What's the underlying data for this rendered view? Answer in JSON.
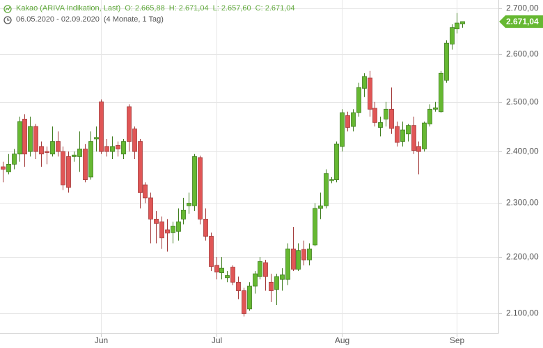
{
  "chart_data": {
    "type": "candlestick",
    "title": "Kakao (ARIVA Indikation, Last)",
    "ohlc_labels": [
      "O: 2.665,88",
      "H: 2.671,04",
      "L: 2.657,60",
      "C: 2.671,04"
    ],
    "period": "06.05.2020 - 02.09.2020",
    "period_note": "(4 Monate, 1 Tag)",
    "log_scale": true,
    "grid": true,
    "up_color": "#66b832",
    "down_color": "#e05656",
    "categories": [
      null,
      null,
      null,
      null,
      null,
      null,
      null,
      null,
      null,
      null,
      null,
      null,
      null,
      null,
      null,
      null,
      null,
      null,
      "Jun",
      null,
      null,
      null,
      null,
      null,
      null,
      null,
      null,
      null,
      null,
      null,
      null,
      null,
      null,
      null,
      null,
      null,
      null,
      null,
      null,
      "Jul",
      null,
      null,
      null,
      null,
      null,
      null,
      null,
      null,
      null,
      null,
      null,
      null,
      null,
      null,
      null,
      null,
      null,
      null,
      null,
      null,
      null,
      null,
      "Aug",
      null,
      null,
      null,
      null,
      null,
      null,
      null,
      null,
      null,
      null,
      null,
      null,
      null,
      null,
      null,
      null,
      null,
      null,
      null,
      null,
      "Sep",
      null
    ],
    "open": [
      2370,
      2360,
      2375,
      2395,
      2465,
      2400,
      2450,
      2410,
      2400,
      2395,
      2420,
      2400,
      2390,
      2390,
      2390,
      2405,
      2350,
      2425,
      2500,
      2410,
      2400,
      2412,
      2395,
      2490,
      2445,
      2420,
      2335,
      2310,
      2270,
      2265,
      2250,
      2245,
      2247,
      2270,
      2295,
      2295,
      2388,
      2270,
      2238,
      2185,
      2172,
      2163,
      2182,
      2155,
      2140,
      2108,
      2148,
      2165,
      2190,
      2155,
      2142,
      2160,
      2160,
      2215,
      2178,
      2214,
      2195,
      2222,
      2290,
      2295,
      2343,
      2345,
      2410,
      2472,
      2450,
      2478,
      2528,
      2550,
      2487,
      2448,
      2465,
      2485,
      2450,
      2420,
      2435,
      2452,
      2410,
      2405,
      2455,
      2485,
      2480,
      2545,
      2622,
      2655,
      2665.88
    ],
    "high": [
      2380,
      2395,
      2405,
      2470,
      2475,
      2470,
      2455,
      2420,
      2410,
      2450,
      2440,
      2410,
      2400,
      2400,
      2440,
      2415,
      2440,
      2450,
      2505,
      2425,
      2430,
      2420,
      2425,
      2495,
      2450,
      2425,
      2340,
      2320,
      2285,
      2275,
      2270,
      2265,
      2290,
      2310,
      2320,
      2395,
      2392,
      2290,
      2245,
      2200,
      2200,
      2175,
      2185,
      2165,
      2145,
      2155,
      2175,
      2200,
      2195,
      2170,
      2170,
      2180,
      2225,
      2255,
      2225,
      2230,
      2225,
      2300,
      2320,
      2365,
      2350,
      2420,
      2485,
      2480,
      2485,
      2540,
      2560,
      2565,
      2500,
      2470,
      2500,
      2530,
      2460,
      2460,
      2455,
      2470,
      2420,
      2460,
      2495,
      2500,
      2565,
      2630,
      2665,
      2690,
      2671.04
    ],
    "low": [
      2340,
      2355,
      2365,
      2380,
      2370,
      2390,
      2385,
      2370,
      2375,
      2390,
      2390,
      2325,
      2320,
      2380,
      2360,
      2340,
      2345,
      2400,
      2395,
      2390,
      2385,
      2390,
      2385,
      2400,
      2385,
      2290,
      2300,
      2225,
      2225,
      2215,
      2210,
      2225,
      2230,
      2260,
      2280,
      2285,
      2260,
      2230,
      2175,
      2160,
      2160,
      2155,
      2150,
      2125,
      2095,
      2105,
      2135,
      2160,
      2140,
      2120,
      2115,
      2140,
      2150,
      2175,
      2175,
      2185,
      2185,
      2220,
      2270,
      2290,
      2338,
      2340,
      2400,
      2440,
      2440,
      2470,
      2510,
      2470,
      2450,
      2430,
      2450,
      2435,
      2410,
      2410,
      2420,
      2395,
      2355,
      2400,
      2450,
      2480,
      2478,
      2540,
      2610,
      2645,
      2657.6
    ],
    "close": [
      2365,
      2375,
      2395,
      2460,
      2395,
      2450,
      2400,
      2395,
      2398,
      2420,
      2400,
      2335,
      2330,
      2393,
      2405,
      2345,
      2420,
      2428,
      2400,
      2400,
      2410,
      2405,
      2420,
      2420,
      2400,
      2320,
      2310,
      2270,
      2262,
      2235,
      2244,
      2257,
      2265,
      2287,
      2300,
      2390,
      2270,
      2238,
      2183,
      2173,
      2180,
      2167,
      2155,
      2140,
      2100,
      2148,
      2170,
      2192,
      2165,
      2140,
      2165,
      2168,
      2215,
      2178,
      2212,
      2195,
      2215,
      2290,
      2295,
      2357,
      2345,
      2415,
      2478,
      2448,
      2478,
      2530,
      2553,
      2485,
      2458,
      2458,
      2485,
      2446,
      2418,
      2443,
      2452,
      2402,
      2400,
      2457,
      2485,
      2488,
      2560,
      2624,
      2658,
      2668,
      2671.04
    ],
    "ylim": [
      2066,
      2719
    ],
    "yticks": [
      {
        "value": 2100,
        "label": "2.100,00"
      },
      {
        "value": 2200,
        "label": "2.200,00"
      },
      {
        "value": 2300,
        "label": "2.300,00"
      },
      {
        "value": 2400,
        "label": "2.400,00"
      },
      {
        "value": 2500,
        "label": "2.500,00"
      },
      {
        "value": 2600,
        "label": "2.600,00"
      },
      {
        "value": 2700,
        "label": "2.700,00"
      }
    ],
    "last_price": {
      "value": 2671.04,
      "label": "2.671,04"
    }
  }
}
